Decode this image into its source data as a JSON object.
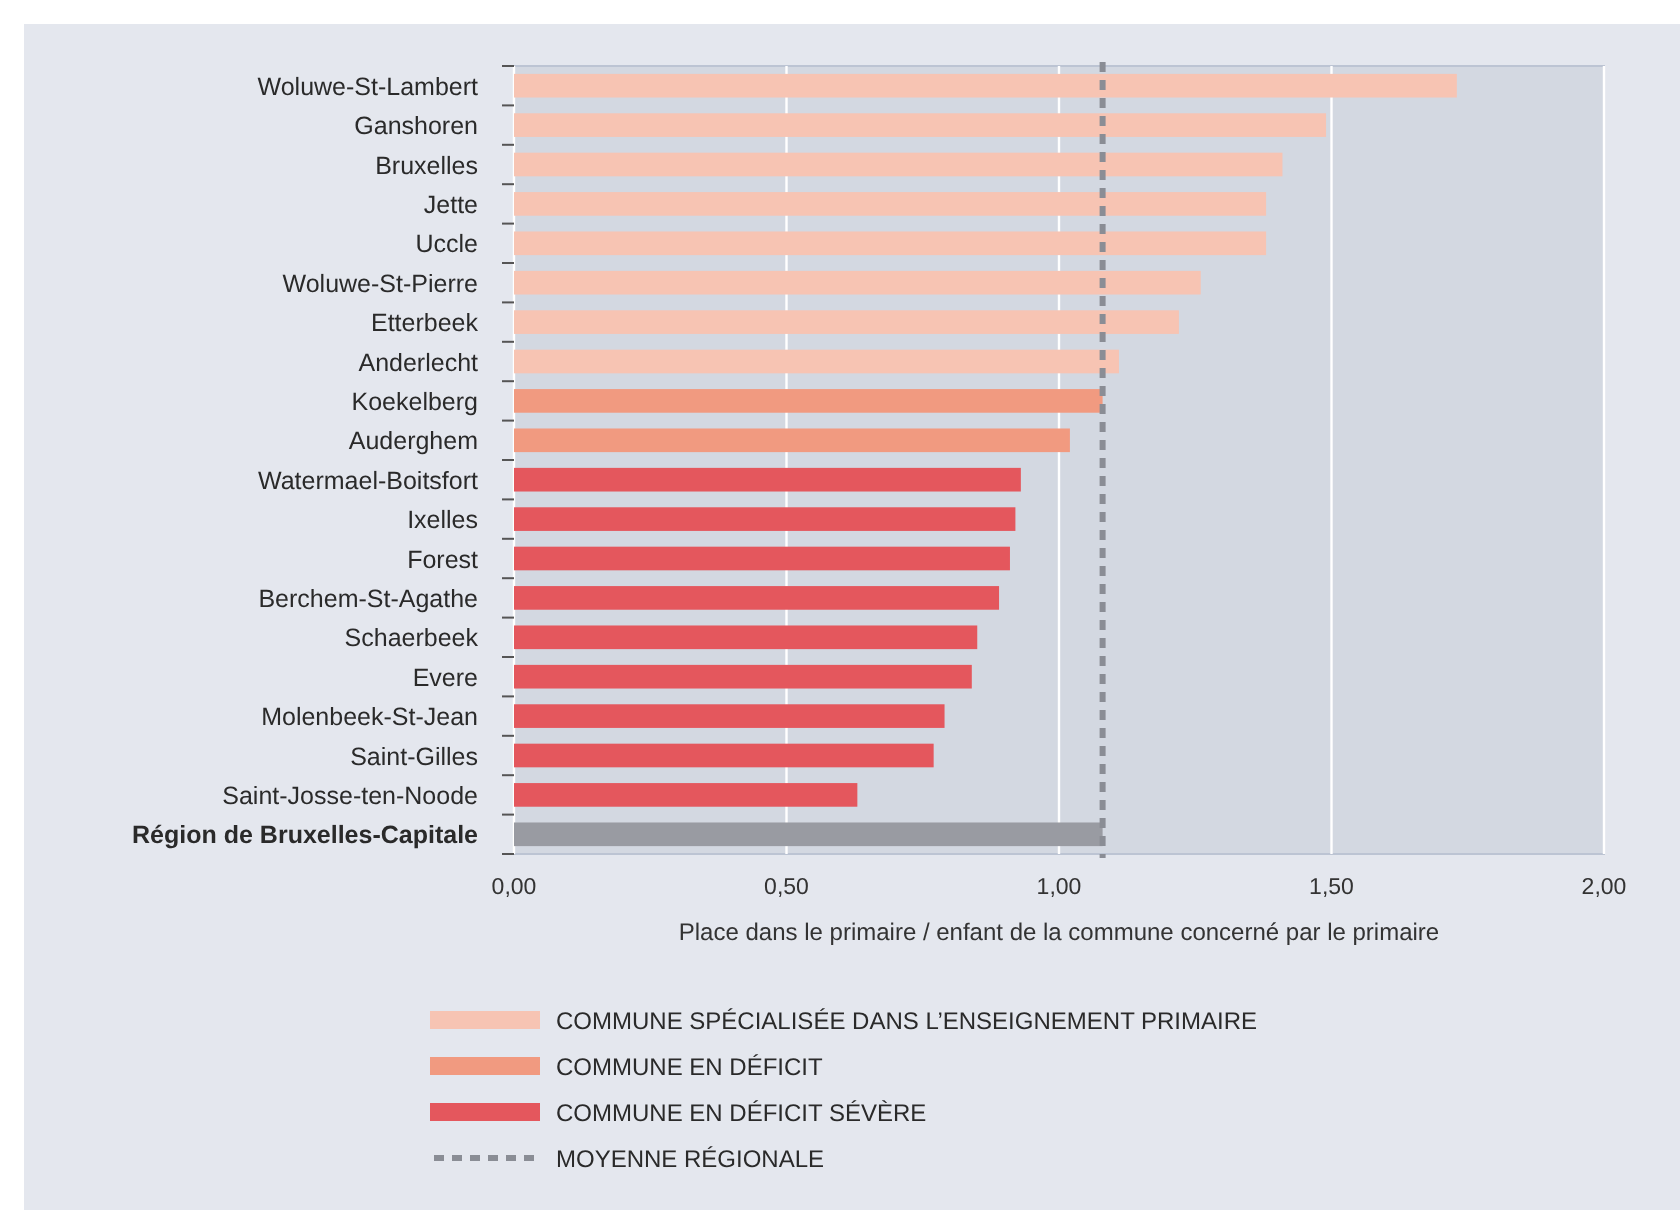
{
  "chart_data": {
    "type": "bar",
    "orientation": "horizontal",
    "stacked": true,
    "categories": [
      "Woluwe-St-Lambert",
      "Ganshoren",
      "Bruxelles",
      "Jette",
      "Uccle",
      "Woluwe-St-Pierre",
      "Etterbeek",
      "Anderlecht",
      "Koekelberg",
      "Auderghem",
      "Watermael-Boitsfort",
      "Ixelles",
      "Forest",
      "Berchem-St-Agathe",
      "Schaerbeek",
      "Evere",
      "Molenbeek-St-Jean",
      "Saint-Gilles",
      "Saint-Josse-ten-Noode",
      "Région de Bruxelles-Capitale"
    ],
    "series": [
      {
        "name": "COMMUNE SPÉCIALISÉE DANS L’ENSEIGNEMENT PRIMAIRE",
        "color": "#f7c4b3",
        "values": [
          1.73,
          1.49,
          1.41,
          1.38,
          1.38,
          1.26,
          1.22,
          1.11,
          null,
          null,
          null,
          null,
          null,
          null,
          null,
          null,
          null,
          null,
          null,
          null
        ]
      },
      {
        "name": "COMMUNE EN DÉFICIT",
        "color": "#f19a80",
        "values": [
          null,
          null,
          null,
          null,
          null,
          null,
          null,
          null,
          1.08,
          1.02,
          null,
          null,
          null,
          null,
          null,
          null,
          null,
          null,
          null,
          null
        ]
      },
      {
        "name": "COMMUNE EN DÉFICIT SÉVÈRE",
        "color": "#e4575d",
        "values": [
          null,
          null,
          null,
          null,
          null,
          null,
          null,
          null,
          null,
          null,
          0.93,
          0.92,
          0.91,
          0.89,
          0.85,
          0.84,
          0.79,
          0.77,
          0.63,
          null
        ]
      },
      {
        "color": "#999ba2",
        "values": [
          null,
          null,
          null,
          null,
          null,
          null,
          null,
          null,
          null,
          null,
          null,
          null,
          null,
          null,
          null,
          null,
          null,
          null,
          null,
          1.08
        ]
      }
    ],
    "xlabel": "Place dans le primaire / enfant de la commune concerné par le primaire",
    "xlim": [
      0,
      2
    ],
    "xticks": [
      {
        "value": 0,
        "label": "0,00"
      },
      {
        "value": 0.5,
        "label": "0,50"
      },
      {
        "value": 1,
        "label": "1,00"
      },
      {
        "value": 1.5,
        "label": "1,50"
      },
      {
        "value": 2,
        "label": "2,00"
      }
    ],
    "grid": "x",
    "legend": "bottom",
    "ref_lines": [
      {
        "axis": "x",
        "value": 1.08,
        "label": "MOYENNE RÉGIONALE",
        "color": "#8a8d95",
        "line_style": "dashed"
      }
    ]
  }
}
